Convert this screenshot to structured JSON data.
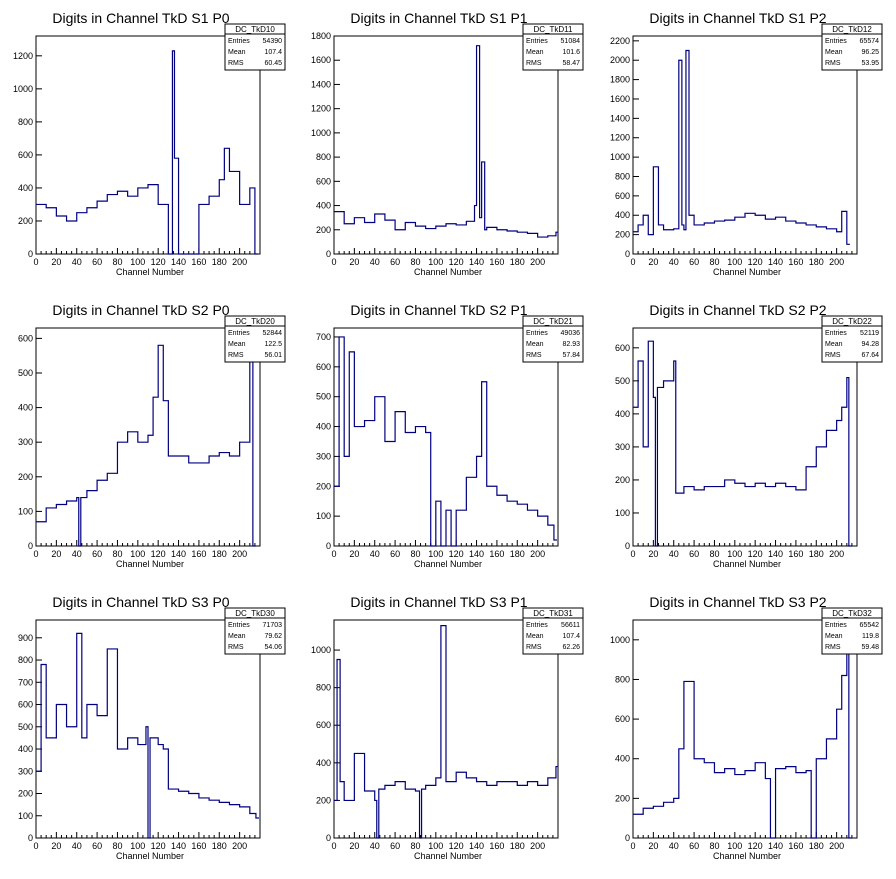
{
  "x_axis": {
    "label": "Channel Number",
    "range": [
      0,
      220
    ],
    "ticks": [
      0,
      20,
      40,
      60,
      80,
      100,
      120,
      140,
      160,
      180,
      200
    ]
  },
  "stat_labels": {
    "entries": "Entries",
    "mean": "Mean",
    "rms": "RMS"
  },
  "colors": {
    "line": "#000080",
    "frame": "#000000",
    "background": "#ffffff"
  },
  "chart_data": [
    {
      "type": "line",
      "title": "Digits in Channel TkD S1 P0",
      "xlabel": "Channel Number",
      "ylabel": "",
      "stats": {
        "name": "DC_TkD10",
        "entries": "54390",
        "mean": "107.4",
        "rms": "60.45"
      },
      "ylim": [
        0,
        1320
      ],
      "yticks": [
        0,
        200,
        400,
        600,
        800,
        1000,
        1200
      ],
      "x": [
        0,
        10,
        20,
        30,
        40,
        50,
        60,
        70,
        80,
        90,
        100,
        110,
        120,
        130,
        134,
        136,
        140,
        150,
        160,
        170,
        180,
        185,
        190,
        200,
        210,
        215
      ],
      "values": [
        300,
        280,
        230,
        200,
        250,
        280,
        320,
        360,
        380,
        350,
        400,
        420,
        300,
        0,
        1230,
        580,
        0,
        0,
        300,
        350,
        450,
        640,
        500,
        300,
        400,
        0
      ]
    },
    {
      "type": "line",
      "title": "Digits in Channel TkD S1 P1",
      "xlabel": "Channel Number",
      "ylabel": "",
      "stats": {
        "name": "DC_TkD11",
        "entries": "51084",
        "mean": "101.6",
        "rms": "58.47"
      },
      "ylim": [
        0,
        1800
      ],
      "yticks": [
        0,
        200,
        400,
        600,
        800,
        1000,
        1200,
        1400,
        1600,
        1800
      ],
      "x": [
        0,
        10,
        20,
        30,
        40,
        50,
        60,
        70,
        80,
        90,
        100,
        110,
        120,
        130,
        138,
        140,
        143,
        145,
        148,
        150,
        160,
        170,
        180,
        190,
        200,
        210,
        218
      ],
      "values": [
        350,
        250,
        300,
        260,
        330,
        280,
        200,
        260,
        230,
        210,
        230,
        250,
        240,
        270,
        400,
        1720,
        300,
        760,
        200,
        220,
        200,
        190,
        180,
        170,
        140,
        150,
        180
      ]
    },
    {
      "type": "line",
      "title": "Digits in Channel TkD S1 P2",
      "xlabel": "Channel Number",
      "ylabel": "",
      "stats": {
        "name": "DC_TkD12",
        "entries": "65574",
        "mean": "96.25",
        "rms": "53.95"
      },
      "ylim": [
        0,
        2250
      ],
      "yticks": [
        0,
        200,
        400,
        600,
        800,
        1000,
        1200,
        1400,
        1600,
        1800,
        2000,
        2200
      ],
      "x": [
        0,
        5,
        10,
        15,
        20,
        25,
        30,
        40,
        45,
        48,
        50,
        52,
        55,
        60,
        70,
        80,
        90,
        100,
        110,
        120,
        130,
        140,
        150,
        160,
        170,
        180,
        190,
        200,
        205,
        210
      ],
      "values": [
        230,
        300,
        400,
        200,
        900,
        300,
        250,
        260,
        2000,
        300,
        250,
        2100,
        400,
        300,
        320,
        340,
        350,
        380,
        420,
        400,
        360,
        380,
        340,
        320,
        300,
        280,
        260,
        230,
        440,
        100
      ]
    },
    {
      "type": "line",
      "title": "Digits in Channel TkD S2 P0",
      "xlabel": "Channel Number",
      "ylabel": "",
      "stats": {
        "name": "DC_TkD20",
        "entries": "52844",
        "mean": "122.5",
        "rms": "56.01"
      },
      "ylim": [
        0,
        630
      ],
      "yticks": [
        0,
        100,
        200,
        300,
        400,
        500,
        600
      ],
      "x": [
        0,
        10,
        20,
        30,
        40,
        42,
        44,
        50,
        60,
        70,
        80,
        90,
        100,
        110,
        115,
        120,
        125,
        130,
        140,
        150,
        160,
        170,
        180,
        190,
        200,
        210,
        213
      ],
      "values": [
        70,
        110,
        120,
        130,
        140,
        0,
        140,
        160,
        190,
        210,
        300,
        330,
        300,
        320,
        430,
        580,
        420,
        260,
        260,
        240,
        240,
        260,
        270,
        260,
        300,
        560,
        0
      ]
    },
    {
      "type": "line",
      "title": "Digits in Channel TkD S2 P1",
      "xlabel": "Channel Number",
      "ylabel": "",
      "stats": {
        "name": "DC_TkD21",
        "entries": "49036",
        "mean": "82.93",
        "rms": "57.84"
      },
      "ylim": [
        0,
        730
      ],
      "yticks": [
        0,
        100,
        200,
        300,
        400,
        500,
        600,
        700
      ],
      "x": [
        0,
        5,
        10,
        15,
        20,
        30,
        40,
        50,
        60,
        70,
        80,
        90,
        95,
        100,
        105,
        110,
        115,
        120,
        130,
        140,
        145,
        150,
        160,
        170,
        180,
        190,
        200,
        210,
        216
      ],
      "values": [
        200,
        700,
        300,
        650,
        400,
        420,
        500,
        350,
        450,
        380,
        400,
        380,
        0,
        150,
        0,
        120,
        0,
        120,
        230,
        300,
        550,
        200,
        170,
        150,
        140,
        120,
        100,
        70,
        20
      ]
    },
    {
      "type": "line",
      "title": "Digits in Channel TkD S2 P2",
      "xlabel": "Channel Number",
      "ylabel": "",
      "stats": {
        "name": "DC_TkD22",
        "entries": "52119",
        "mean": "94.28",
        "rms": "67.64"
      },
      "ylim": [
        0,
        660
      ],
      "yticks": [
        0,
        100,
        200,
        300,
        400,
        500,
        600
      ],
      "x": [
        0,
        5,
        10,
        15,
        20,
        22,
        24,
        30,
        40,
        42,
        50,
        60,
        70,
        80,
        90,
        100,
        110,
        120,
        130,
        140,
        150,
        160,
        170,
        180,
        190,
        200,
        205,
        210,
        212
      ],
      "values": [
        420,
        560,
        300,
        620,
        450,
        0,
        480,
        500,
        560,
        160,
        180,
        170,
        180,
        180,
        200,
        190,
        180,
        190,
        180,
        190,
        180,
        170,
        240,
        300,
        350,
        380,
        420,
        510,
        0
      ]
    },
    {
      "type": "line",
      "title": "Digits in Channel TkD S3 P0",
      "xlabel": "Channel Number",
      "ylabel": "",
      "stats": {
        "name": "DC_TkD30",
        "entries": "71703",
        "mean": "79.62",
        "rms": "54.06"
      },
      "ylim": [
        0,
        980
      ],
      "yticks": [
        0,
        100,
        200,
        300,
        400,
        500,
        600,
        700,
        800,
        900
      ],
      "x": [
        0,
        5,
        10,
        20,
        30,
        40,
        45,
        50,
        60,
        70,
        80,
        90,
        100,
        108,
        110,
        112,
        120,
        125,
        130,
        140,
        150,
        160,
        170,
        180,
        190,
        200,
        210,
        216
      ],
      "values": [
        300,
        780,
        450,
        600,
        500,
        920,
        450,
        600,
        550,
        850,
        400,
        450,
        420,
        500,
        0,
        450,
        420,
        400,
        220,
        210,
        200,
        180,
        170,
        160,
        150,
        140,
        110,
        90
      ]
    },
    {
      "type": "line",
      "title": "Digits in Channel TkD S3 P1",
      "xlabel": "Channel Number",
      "ylabel": "",
      "stats": {
        "name": "DC_TkD31",
        "entries": "56611",
        "mean": "107.4",
        "rms": "62.26"
      },
      "ylim": [
        0,
        1160
      ],
      "yticks": [
        0,
        200,
        400,
        600,
        800,
        1000
      ],
      "x": [
        0,
        3,
        6,
        10,
        20,
        30,
        40,
        42,
        44,
        50,
        60,
        70,
        80,
        84,
        86,
        90,
        100,
        105,
        110,
        120,
        130,
        140,
        150,
        160,
        170,
        180,
        190,
        200,
        210,
        218
      ],
      "values": [
        200,
        950,
        300,
        200,
        450,
        250,
        200,
        0,
        260,
        280,
        300,
        260,
        250,
        0,
        260,
        280,
        320,
        1130,
        300,
        350,
        320,
        300,
        280,
        300,
        300,
        280,
        300,
        280,
        320,
        380
      ]
    },
    {
      "type": "line",
      "title": "Digits in Channel TkD S3 P2",
      "xlabel": "Channel Number",
      "ylabel": "",
      "stats": {
        "name": "DC_TkD32",
        "entries": "65542",
        "mean": "119.8",
        "rms": "59.48"
      },
      "ylim": [
        0,
        1100
      ],
      "yticks": [
        0,
        200,
        400,
        600,
        800,
        1000
      ],
      "x": [
        0,
        10,
        20,
        30,
        40,
        45,
        50,
        60,
        70,
        80,
        90,
        100,
        110,
        120,
        130,
        135,
        140,
        150,
        160,
        170,
        175,
        180,
        190,
        200,
        205,
        210,
        212
      ],
      "values": [
        120,
        150,
        160,
        180,
        200,
        450,
        790,
        400,
        380,
        330,
        350,
        320,
        340,
        380,
        300,
        0,
        350,
        360,
        330,
        340,
        0,
        400,
        500,
        650,
        820,
        1080,
        0
      ]
    }
  ]
}
